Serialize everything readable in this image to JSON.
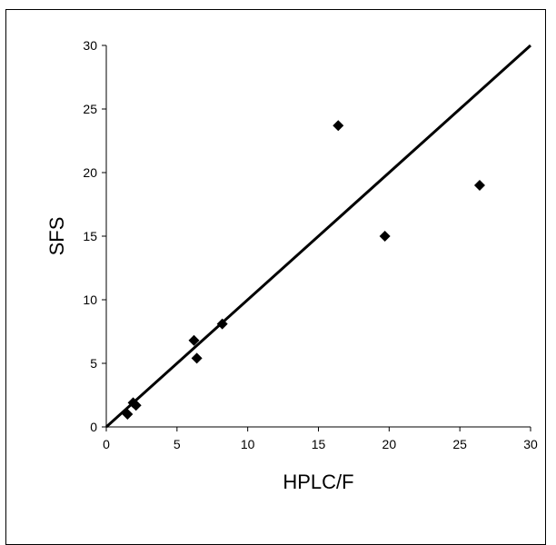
{
  "chart_data": {
    "type": "scatter",
    "title": "",
    "xlabel": "HPLC/F",
    "ylabel": "SFS",
    "xlim": [
      0,
      30
    ],
    "ylim": [
      0,
      30
    ],
    "xticks": [
      0,
      5,
      10,
      15,
      20,
      25,
      30
    ],
    "yticks": [
      0,
      5,
      10,
      15,
      20,
      25,
      30
    ],
    "grid": false,
    "legend": "none",
    "series": [
      {
        "marker": "diamond",
        "color": "#000000",
        "points": [
          {
            "x": 1.5,
            "y": 1.0
          },
          {
            "x": 1.9,
            "y": 1.9
          },
          {
            "x": 2.1,
            "y": 1.7
          },
          {
            "x": 6.2,
            "y": 6.8
          },
          {
            "x": 6.4,
            "y": 5.4
          },
          {
            "x": 8.2,
            "y": 8.1
          },
          {
            "x": 16.4,
            "y": 23.7
          },
          {
            "x": 19.7,
            "y": 15.0
          },
          {
            "x": 26.4,
            "y": 19.0
          }
        ]
      }
    ],
    "reference_line": {
      "x": [
        0,
        30
      ],
      "y": [
        0,
        30
      ],
      "color": "#000000"
    }
  }
}
